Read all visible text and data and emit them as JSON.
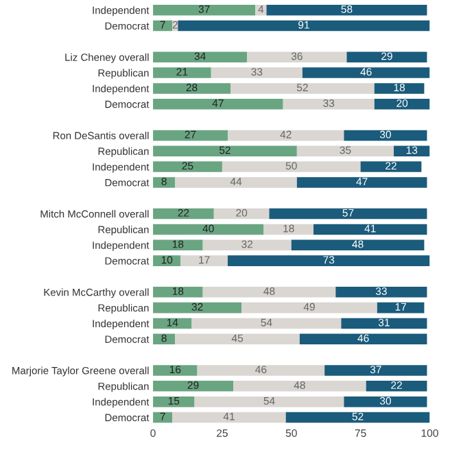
{
  "chart_data": {
    "type": "bar",
    "orientation": "horizontal",
    "stacked": true,
    "data_labels": true,
    "grid": false,
    "legend": false,
    "categories": [
      "Independent",
      "Democrat",
      null,
      "Liz Cheney overall",
      "Republican",
      "Independent",
      "Democrat",
      null,
      "Ron DeSantis overall",
      "Republican",
      "Independent",
      "Democrat",
      null,
      "Mitch McConnell overall",
      "Republican",
      "Independent",
      "Democrat",
      null,
      "Kevin McCarthy overall",
      "Republican",
      "Independent",
      "Democrat",
      null,
      "Marjorie Taylor Greene overall",
      "Republican",
      "Independent",
      "Democrat"
    ],
    "series": [
      {
        "color": "#6aa582",
        "values": [
          37,
          7,
          null,
          34,
          21,
          28,
          47,
          null,
          27,
          52,
          25,
          8,
          null,
          22,
          40,
          18,
          10,
          null,
          18,
          32,
          14,
          8,
          null,
          16,
          29,
          15,
          7
        ]
      },
      {
        "color": "#dad6d1",
        "values": [
          4,
          2,
          null,
          36,
          33,
          52,
          33,
          null,
          42,
          35,
          50,
          44,
          null,
          20,
          18,
          32,
          17,
          null,
          48,
          49,
          54,
          45,
          null,
          46,
          48,
          54,
          41
        ]
      },
      {
        "color": "#1b5b7b",
        "values": [
          58,
          91,
          null,
          29,
          46,
          18,
          20,
          null,
          30,
          13,
          22,
          47,
          null,
          57,
          41,
          48,
          73,
          null,
          33,
          17,
          31,
          46,
          null,
          37,
          22,
          30,
          52
        ]
      }
    ],
    "xlim": [
      0,
      100
    ],
    "xticks": [
      0,
      25,
      50,
      75,
      100
    ]
  }
}
